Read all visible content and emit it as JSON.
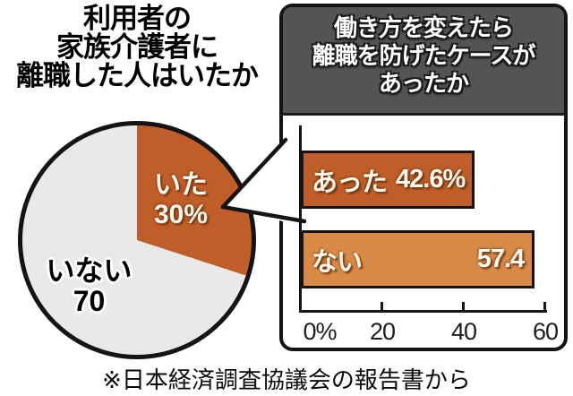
{
  "chart_data": [
    {
      "type": "pie",
      "title": "利用者の家族介護者に離職した人はいたか",
      "labels": [
        "いた",
        "いない"
      ],
      "values": [
        30,
        70
      ],
      "value_labels": [
        "30%",
        "70"
      ],
      "colors": [
        "#bf5e28",
        "#e9e9e7"
      ],
      "start_angle_deg": 0,
      "direction": "clockwise",
      "legend": false
    },
    {
      "type": "bar",
      "orientation": "horizontal",
      "title": "働き方を変えたら離職を防げたケースがあったか",
      "categories": [
        "あった",
        "ない"
      ],
      "values": [
        42.6,
        57.4
      ],
      "value_labels": [
        "42.6%",
        "57.4"
      ],
      "bar_colors": [
        "#bf5e28",
        "#d98a46"
      ],
      "xlim": [
        0,
        60
      ],
      "xticks": [
        {
          "value": 0,
          "label": "0%"
        },
        {
          "value": 20,
          "label": "20"
        },
        {
          "value": 40,
          "label": "40"
        },
        {
          "value": 60,
          "label": "60"
        }
      ],
      "grid": false,
      "legend": false
    }
  ],
  "pie_section": {
    "title_lines": [
      "利用者の",
      "家族介護者に",
      "離職した人はいたか"
    ],
    "slice1_label": "いた",
    "slice1_value": "30%",
    "slice2_label": "いない",
    "slice2_value": "70"
  },
  "bar_section": {
    "header_lines": [
      "働き方を変えたら",
      "離職を防げたケースが",
      "あったか"
    ],
    "bar1_label": "あった",
    "bar1_value": "42.6%",
    "bar2_label": "ない",
    "bar2_value": "57.4"
  },
  "footer": {
    "source_note": "※日本経済調査協議会の報告書から"
  },
  "colors": {
    "orange_dark": "#bf5e28",
    "orange_light": "#d98a46",
    "pie_gray": "#e9e9e7",
    "header_gray": "#545456",
    "outline_black": "#141414"
  }
}
